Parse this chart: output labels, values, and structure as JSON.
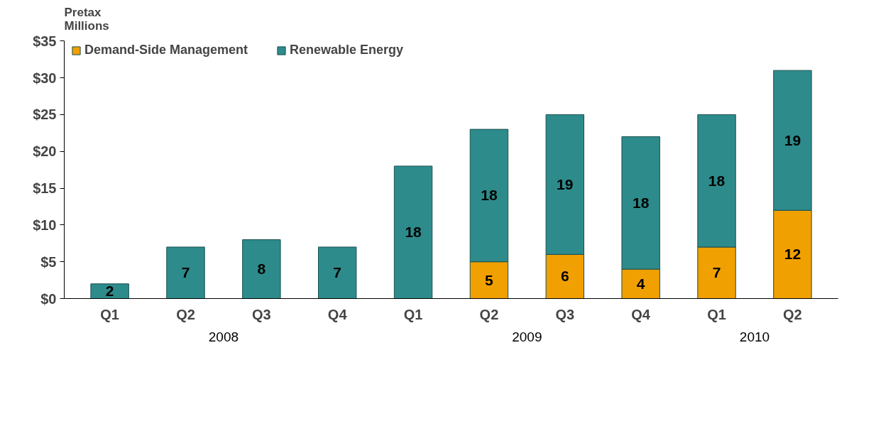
{
  "chart_data": {
    "type": "bar",
    "stacked": true,
    "ylabel": "Pretax\nMillions",
    "categories": [
      "Q1",
      "Q2",
      "Q3",
      "Q4",
      "Q1",
      "Q2",
      "Q3",
      "Q4",
      "Q1",
      "Q2"
    ],
    "annotations": [
      "2008",
      "2009",
      "2010"
    ],
    "series": [
      {
        "name": "Demand-Side Management",
        "color": "#f0a000",
        "values": [
          0,
          0,
          0,
          0,
          0,
          5,
          6,
          4,
          7,
          12
        ],
        "value_labels": [
          null,
          null,
          null,
          null,
          null,
          "5",
          "6",
          "4",
          "7",
          "12"
        ]
      },
      {
        "name": "Renewable Energy",
        "color": "#2e8b8b",
        "values": [
          2,
          7,
          8,
          7,
          18,
          18,
          19,
          18,
          18,
          19
        ],
        "value_labels": [
          "2",
          "7",
          "8",
          "7",
          "18",
          "18",
          "19",
          "18",
          "18",
          "19"
        ]
      }
    ],
    "ylim": [
      0,
      35
    ],
    "yticks": [
      {
        "value": 0,
        "label": "$0"
      },
      {
        "value": 5,
        "label": "$5"
      },
      {
        "value": 10,
        "label": "$10"
      },
      {
        "value": 15,
        "label": "$15"
      },
      {
        "value": 20,
        "label": "$20"
      },
      {
        "value": 25,
        "label": "$25"
      },
      {
        "value": 30,
        "label": "$30"
      },
      {
        "value": 35,
        "label": "$35"
      }
    ],
    "grid": false,
    "legend": "top left"
  }
}
